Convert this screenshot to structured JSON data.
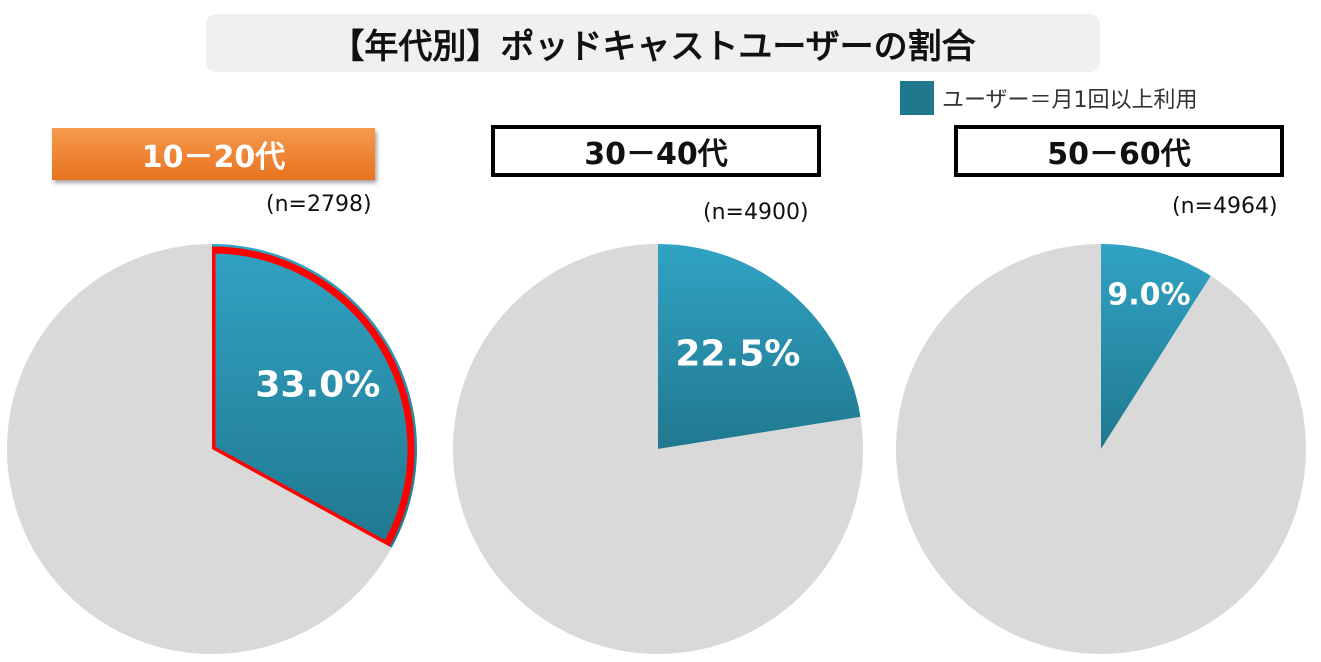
{
  "title": "【年代別】ポッドキャストユーザーの割合",
  "legend": {
    "label": "ユーザー＝月1回以上利用",
    "icon": "square-swatch"
  },
  "colors": {
    "user_top": "#31a3c4",
    "user_bottom": "#20788f",
    "other": "#d9d9d9",
    "highlight_border": "#ff0000",
    "highlight_label": "#ee8432"
  },
  "chart_data": [
    {
      "type": "pie",
      "category_label": "10－20代",
      "n_label": "(n=2798)",
      "highlighted": true,
      "slices": [
        {
          "name": "ユーザー",
          "value": 33.0,
          "label": "33.0%"
        },
        {
          "name": "other",
          "value": 67.0,
          "label": ""
        }
      ]
    },
    {
      "type": "pie",
      "category_label": "30－40代",
      "n_label": "(n=4900)",
      "highlighted": false,
      "slices": [
        {
          "name": "ユーザー",
          "value": 22.5,
          "label": "22.5%"
        },
        {
          "name": "other",
          "value": 77.5,
          "label": ""
        }
      ]
    },
    {
      "type": "pie",
      "category_label": "50－60代",
      "n_label": "(n=4964)",
      "highlighted": false,
      "slices": [
        {
          "name": "ユーザー",
          "value": 9.0,
          "label": "9.0%"
        },
        {
          "name": "other",
          "value": 91.0,
          "label": ""
        }
      ]
    }
  ]
}
